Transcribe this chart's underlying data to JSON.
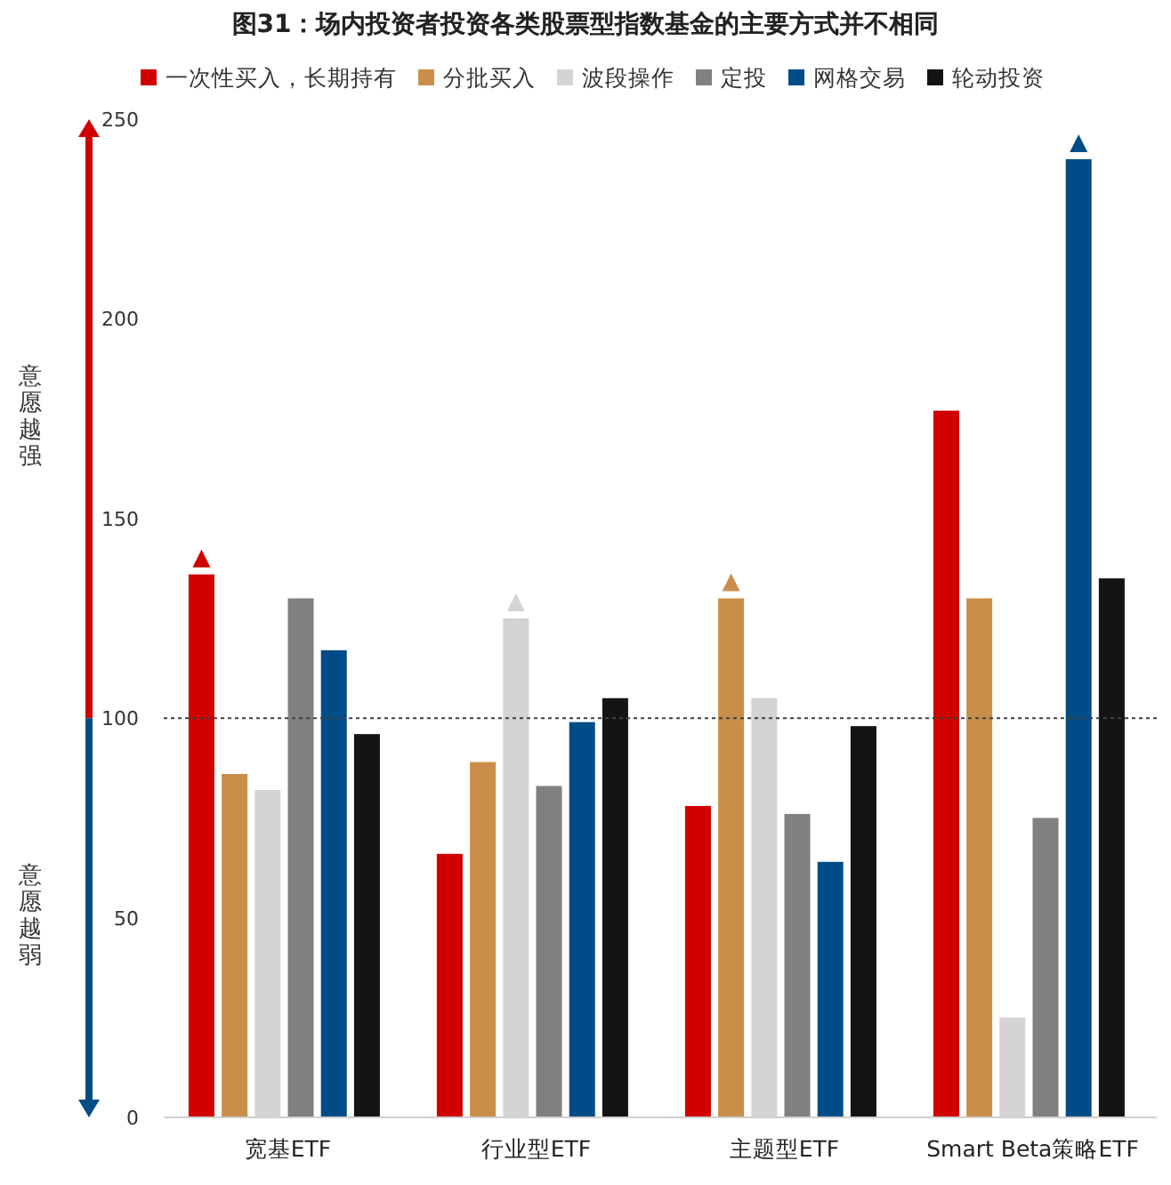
{
  "chart_data": {
    "type": "bar",
    "title": "图31：场内投资者投资各类股票型指数基金的主要方式并不相同",
    "categories": [
      "宽基ETF",
      "行业型ETF",
      "主题型ETF",
      "Smart Beta策略ETF"
    ],
    "series": [
      {
        "name": "一次性买入，长期持有",
        "color": "#d10000",
        "values": [
          136,
          66,
          78,
          177
        ]
      },
      {
        "name": "分批买入",
        "color": "#c98e4a",
        "values": [
          86,
          89,
          130,
          130
        ]
      },
      {
        "name": "波段操作",
        "color": "#d5d3d6",
        "values": [
          82,
          125,
          105,
          25
        ]
      },
      {
        "name": "定投",
        "color": "#808080",
        "values": [
          130,
          83,
          76,
          75
        ]
      },
      {
        "name": "网格交易",
        "color": "#004c87",
        "values": [
          117,
          99,
          64,
          240
        ]
      },
      {
        "name": "轮动投资",
        "color": "#141414",
        "values": [
          96,
          105,
          98,
          135
        ]
      }
    ],
    "ylim": [
      0,
      250
    ],
    "yticks": [
      0,
      50,
      100,
      150,
      200,
      250
    ],
    "grid": false,
    "legend": "top",
    "ref_lines": [
      {
        "axis": "y",
        "value": 100,
        "color": "#404040",
        "line_style": "dotted"
      }
    ],
    "annotations": [
      "意愿越强",
      "意愿越弱"
    ]
  }
}
